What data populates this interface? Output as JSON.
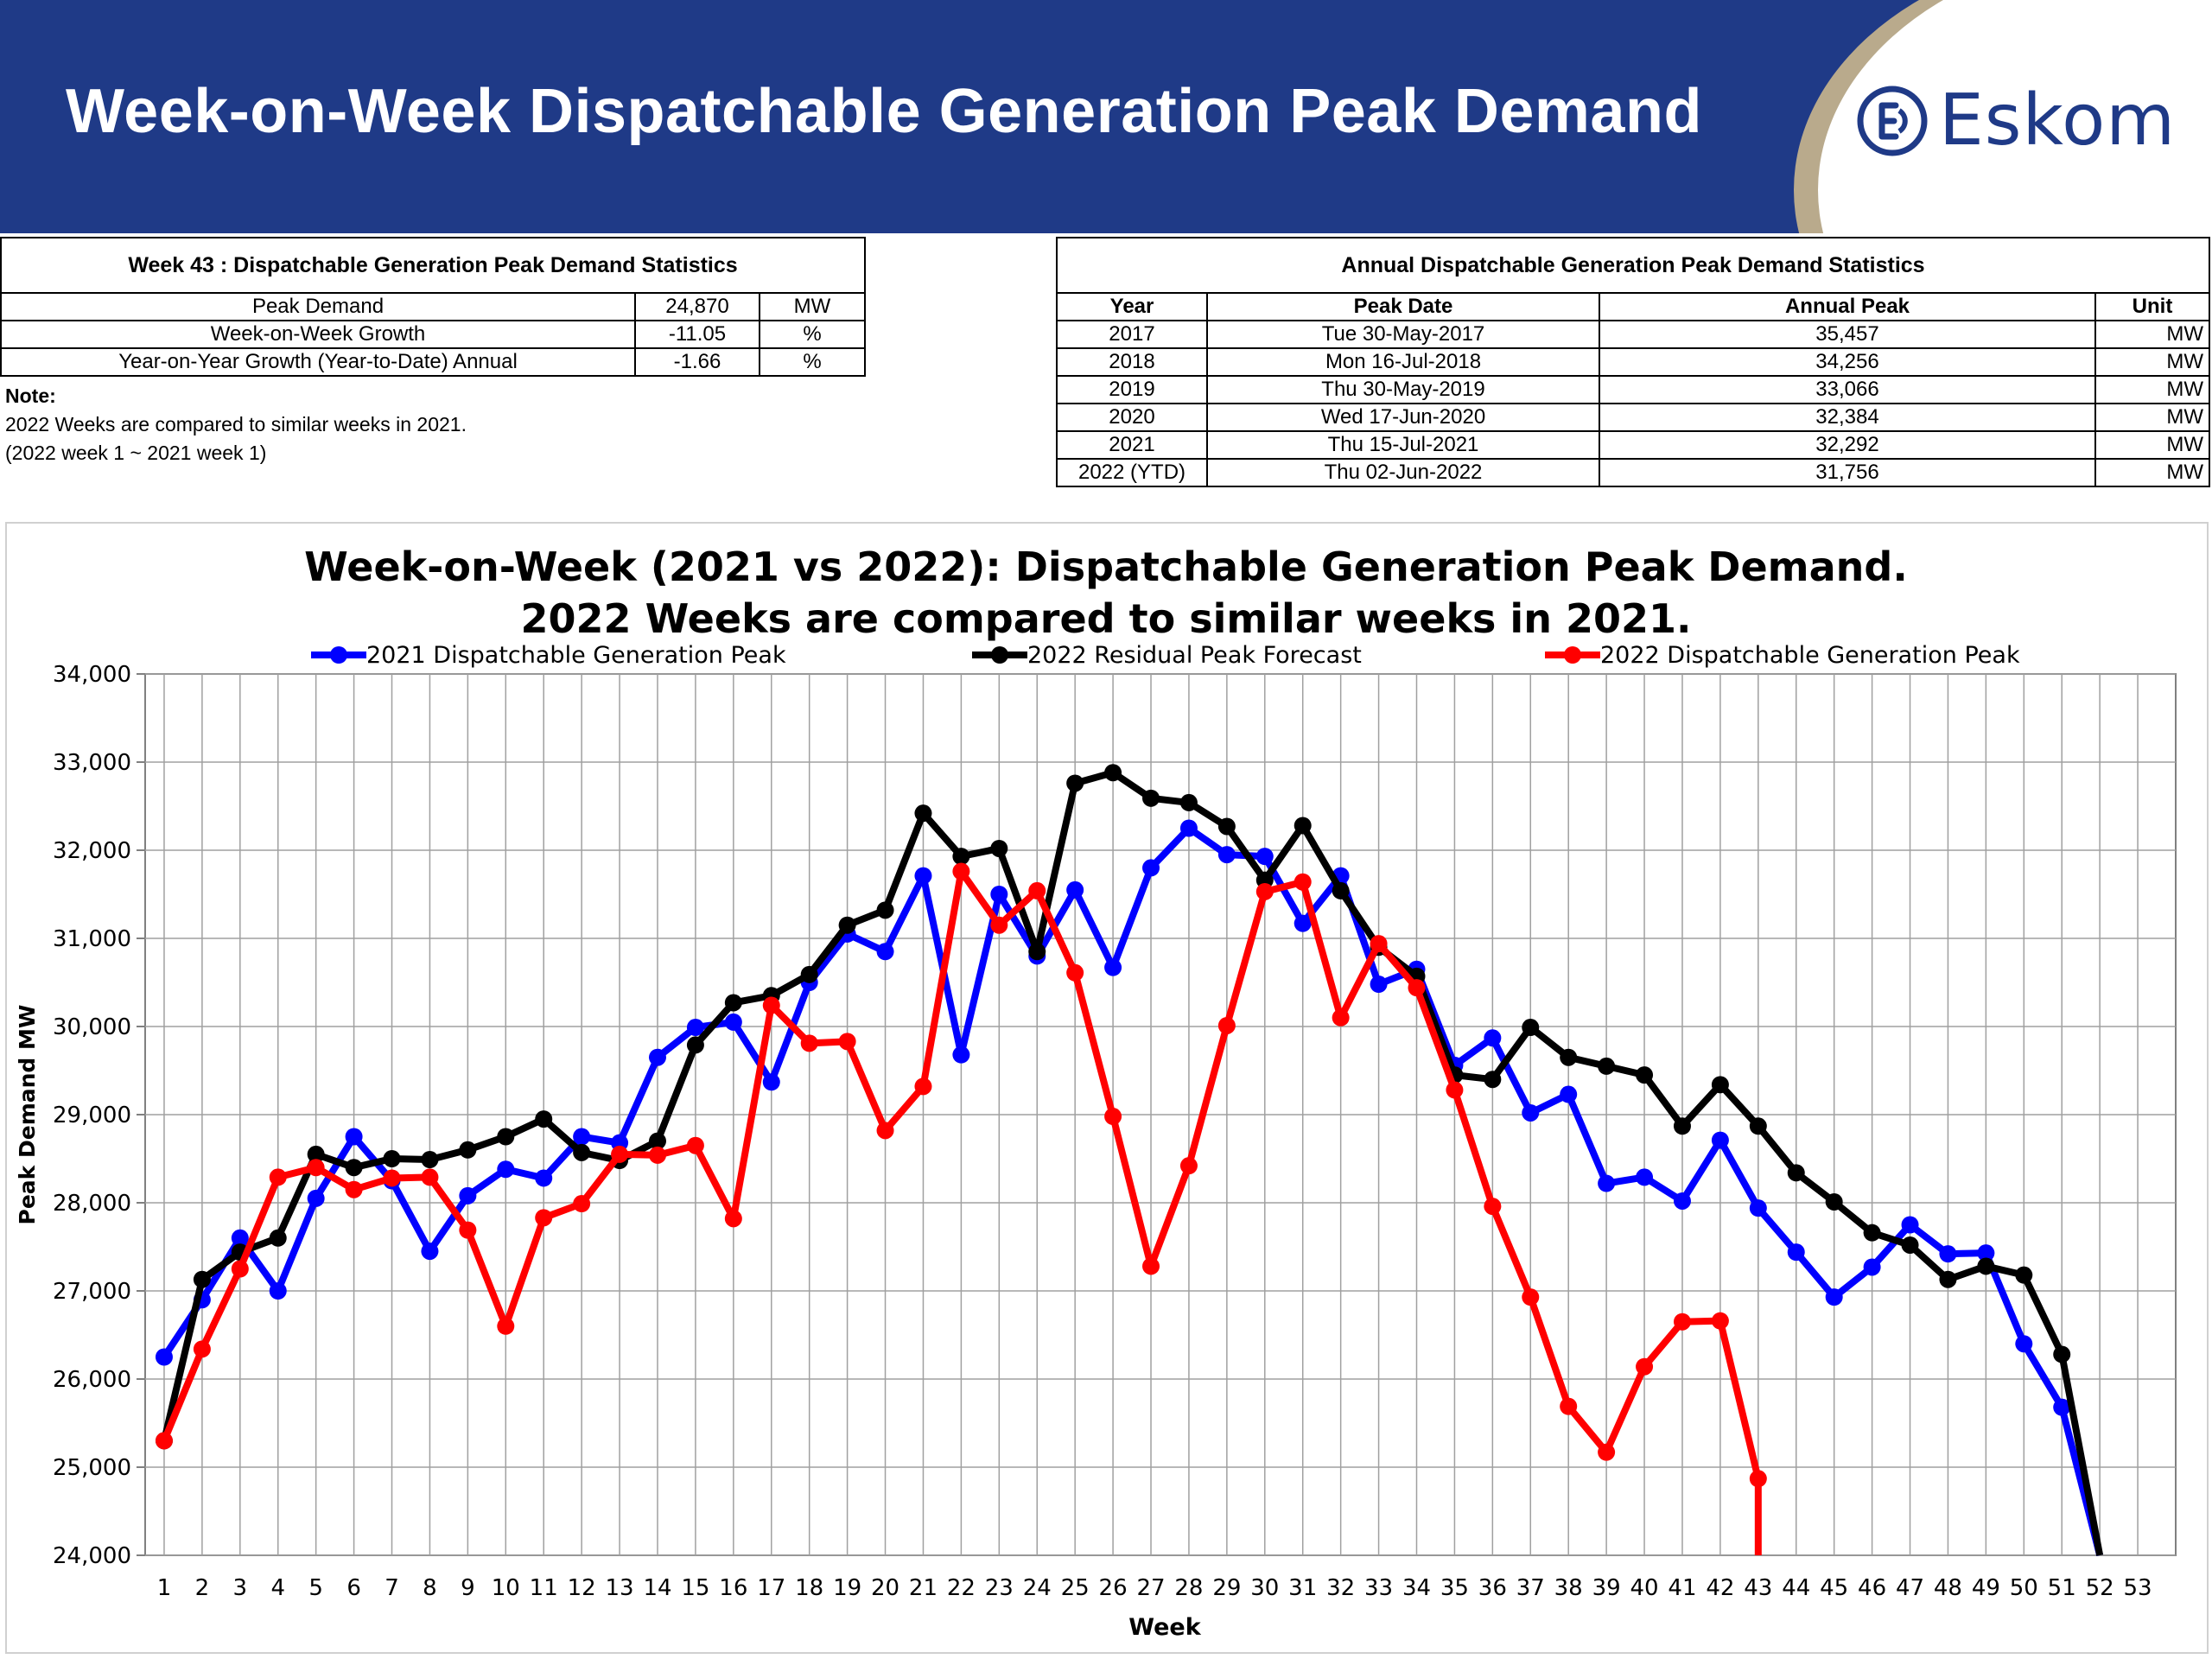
{
  "header": {
    "title": "Week-on-Week Dispatchable Generation Peak Demand",
    "logo_text": "Eskom",
    "brand_color": "#1f3a87"
  },
  "week_stats": {
    "caption": "Week 43 : Dispatchable Generation Peak Demand Statistics",
    "rows": [
      {
        "label": "Peak Demand",
        "value": "24,870",
        "unit": "MW"
      },
      {
        "label": "Week-on-Week Growth",
        "value": "-11.05",
        "unit": "%"
      },
      {
        "label": "Year-on-Year Growth (Year-to-Date) Annual",
        "value": "-1.66",
        "unit": "%"
      }
    ]
  },
  "note": {
    "label": "Note:",
    "lines": [
      "2022 Weeks are compared to similar weeks in 2021.",
      "(2022 week 1 ~ 2021 week 1)"
    ]
  },
  "annual_stats": {
    "caption": "Annual Dispatchable Generation Peak Demand Statistics",
    "headers": [
      "Year",
      "Peak Date",
      "Annual Peak",
      "Unit"
    ],
    "rows": [
      [
        "2017",
        "Tue 30-May-2017",
        "35,457",
        "MW"
      ],
      [
        "2018",
        "Mon 16-Jul-2018",
        "34,256",
        "MW"
      ],
      [
        "2019",
        "Thu 30-May-2019",
        "33,066",
        "MW"
      ],
      [
        "2020",
        "Wed 17-Jun-2020",
        "32,384",
        "MW"
      ],
      [
        "2021",
        "Thu 15-Jul-2021",
        "32,292",
        "MW"
      ],
      [
        "2022 (YTD)",
        "Thu 02-Jun-2022",
        "31,756",
        "MW"
      ]
    ]
  },
  "chart_data": {
    "type": "line",
    "title": "Week-on-Week (2021 vs 2022): Dispatchable Generation Peak Demand.",
    "subtitle": "2022 Weeks are compared to similar weeks in 2021.",
    "xlabel": "Week",
    "ylabel": "Peak Demand MW",
    "ylim": [
      24000,
      34000
    ],
    "y_ticks": [
      "24,000",
      "25,000",
      "26,000",
      "27,000",
      "28,000",
      "29,000",
      "30,000",
      "31,000",
      "32,000",
      "33,000",
      "34,000"
    ],
    "y_tick_values": [
      24000,
      25000,
      26000,
      27000,
      28000,
      29000,
      30000,
      31000,
      32000,
      33000,
      34000
    ],
    "x": [
      1,
      2,
      3,
      4,
      5,
      6,
      7,
      8,
      9,
      10,
      11,
      12,
      13,
      14,
      15,
      16,
      17,
      18,
      19,
      20,
      21,
      22,
      23,
      24,
      25,
      26,
      27,
      28,
      29,
      30,
      31,
      32,
      33,
      34,
      35,
      36,
      37,
      38,
      39,
      40,
      41,
      42,
      43,
      44,
      45,
      46,
      47,
      48,
      49,
      50,
      51,
      52,
      53
    ],
    "grid": true,
    "legend_position": "top",
    "series": [
      {
        "name": "2021 Dispatchable Generation Peak",
        "color": "#0000ff",
        "values": [
          26250,
          26900,
          27600,
          27000,
          28050,
          28750,
          28250,
          27450,
          28080,
          28380,
          28280,
          28750,
          28680,
          29650,
          29990,
          30050,
          29370,
          30500,
          31050,
          30850,
          31710,
          29680,
          31500,
          30800,
          31550,
          30670,
          31800,
          32250,
          31950,
          31930,
          31170,
          31710,
          30480,
          30650,
          29560,
          29870,
          29020,
          29230,
          28220,
          28290,
          28020,
          28710,
          27940,
          27440,
          26930,
          27270,
          27750,
          27420,
          27430,
          26400,
          25680,
          24000,
          null
        ]
      },
      {
        "name": "2022 Residual Peak Forecast",
        "color": "#000000",
        "values": [
          25300,
          27130,
          27440,
          27600,
          28550,
          28400,
          28500,
          28490,
          28600,
          28750,
          28950,
          28570,
          28480,
          28700,
          29790,
          30270,
          30350,
          30590,
          31150,
          31320,
          32420,
          31930,
          32020,
          30850,
          32760,
          32880,
          32590,
          32540,
          32270,
          31660,
          32280,
          31540,
          30900,
          30570,
          29450,
          29400,
          29990,
          29650,
          29550,
          29450,
          28870,
          29340,
          28870,
          28340,
          28010,
          27660,
          27520,
          27130,
          27280,
          27180,
          26280,
          24000,
          null
        ]
      },
      {
        "name": "2022 Dispatchable Generation Peak",
        "color": "#ff0000",
        "values": [
          25300,
          26340,
          27250,
          28290,
          28400,
          28150,
          28280,
          28290,
          27690,
          26600,
          27830,
          27990,
          28550,
          28540,
          28650,
          27820,
          30240,
          29810,
          29830,
          28820,
          29320,
          31760,
          31150,
          31540,
          30610,
          28980,
          27280,
          28420,
          30010,
          31530,
          31640,
          30100,
          30940,
          30440,
          29280,
          27960,
          26930,
          25690,
          25170,
          26140,
          26650,
          26660,
          24870,
          null,
          null,
          null,
          null,
          null,
          null,
          null,
          null,
          null,
          null
        ]
      }
    ],
    "extra_points": [
      {
        "series": "2022 Dispatchable Generation Peak",
        "x": 43,
        "y": 24000
      }
    ]
  }
}
